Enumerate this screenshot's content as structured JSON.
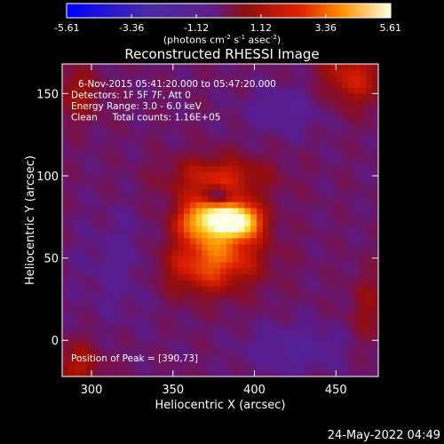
{
  "chart_data": {
    "type": "heatmap",
    "title": "Reconstructed RHESSI Image",
    "xlabel": "Heliocentric X (arcsec)",
    "ylabel": "Heliocentric Y (arcsec)",
    "xlim": [
      282,
      476
    ],
    "ylim": [
      -22,
      168
    ],
    "xticks": [
      300,
      350,
      400,
      450
    ],
    "yticks": [
      0,
      50,
      100,
      150
    ],
    "colorbar": {
      "ticks": [
        "-5.61",
        "-3.36",
        "-1.12",
        "1.12",
        "3.36",
        "5.61"
      ],
      "range": [
        -5.61,
        5.61
      ],
      "units_text": "(photons cm",
      "units_exp1": "-2",
      "units_mid": " s",
      "units_exp2": "-1",
      "units_mid2": " asec",
      "units_exp3": "-2",
      "units_end": ")"
    },
    "annotations": [
      "6-Nov-2015 05:41:20.000 to 05:47:20.000",
      "Detectors: 1F 5F 7F, Att 0",
      "Energy Range: 3.0 - 6.0 keV",
      "Clean     Total counts: 1.16E+05"
    ],
    "peak_label": "Position of Peak = [390,73]",
    "peak": [
      390,
      73
    ],
    "sources": [
      {
        "x": 390,
        "y": 73,
        "amp": 5.2,
        "sx": 10,
        "sy": 7
      },
      {
        "x": 370,
        "y": 74,
        "amp": 4.0,
        "sx": 12,
        "sy": 8
      },
      {
        "x": 378,
        "y": 55,
        "amp": 2.8,
        "sx": 20,
        "sy": 14
      },
      {
        "x": 378,
        "y": 98,
        "amp": 2.4,
        "sx": 22,
        "sy": 10
      },
      {
        "x": 365,
        "y": 40,
        "amp": 1.3,
        "sx": 22,
        "sy": 12
      },
      {
        "x": 460,
        "y": 160,
        "amp": 2.2,
        "sx": 14,
        "sy": 14
      },
      {
        "x": 292,
        "y": 150,
        "amp": 1.5,
        "sx": 10,
        "sy": 12
      },
      {
        "x": 292,
        "y": -15,
        "amp": 1.8,
        "sx": 10,
        "sy": 10
      },
      {
        "x": 470,
        "y": 20,
        "amp": 1.2,
        "sx": 8,
        "sy": 16
      },
      {
        "x": 378,
        "y": 88,
        "amp": -2.2,
        "sx": 5,
        "sy": 4
      },
      {
        "x": 420,
        "y": 140,
        "amp": -1.0,
        "sx": 18,
        "sy": 10
      },
      {
        "x": 320,
        "y": 45,
        "amp": -0.8,
        "sx": 18,
        "sy": 22
      },
      {
        "x": 425,
        "y": -5,
        "amp": -1.2,
        "sx": 20,
        "sy": 10
      }
    ],
    "background": -0.5
  },
  "timestamp": "24-May-2022 04:49"
}
